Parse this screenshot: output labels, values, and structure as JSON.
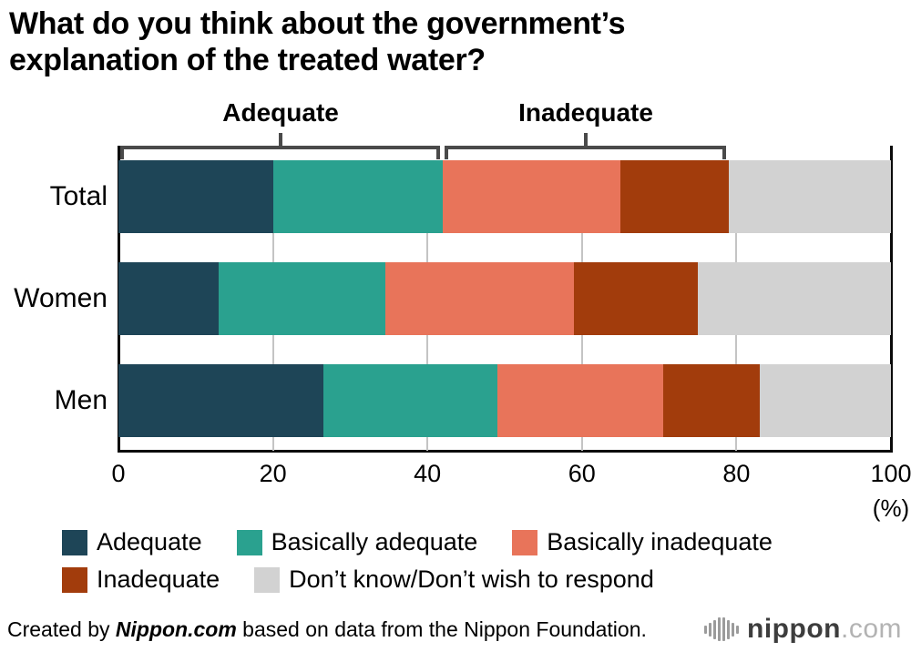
{
  "chart_data": {
    "type": "bar",
    "orientation": "horizontal",
    "stacked": true,
    "title": "What do you think about the government’s explanation of the treated water?",
    "categories": [
      "Total",
      "Women",
      "Men"
    ],
    "series": [
      {
        "name": "Adequate",
        "color": "#1e4557",
        "values": [
          20,
          13,
          26.5
        ]
      },
      {
        "name": "Basically adequate",
        "color": "#2aa18f",
        "values": [
          22,
          21.5,
          22.5
        ]
      },
      {
        "name": "Basically inadequate",
        "color": "#e8745a",
        "values": [
          23,
          24.5,
          21.5
        ]
      },
      {
        "name": "Inadequate",
        "color": "#a23c0c",
        "values": [
          14,
          16,
          12.5
        ]
      },
      {
        "name": "Don’t know/Don’t wish to respond",
        "color": "#d2d2d2",
        "values": [
          21,
          25,
          17
        ]
      }
    ],
    "xlim": [
      0,
      100
    ],
    "x_ticks": [
      0,
      20,
      40,
      60,
      80,
      100
    ],
    "x_unit_label": "(%)",
    "grid": true,
    "legend_position": "bottom",
    "annotations": [
      {
        "label": "Adequate",
        "from": 0,
        "to": 42
      },
      {
        "label": "Inadequate",
        "from": 42,
        "to": 79
      }
    ]
  },
  "footer": {
    "credit_prefix": "Created by ",
    "credit_source": "Nippon.com",
    "credit_suffix": " based on data from the Nippon Foundation.",
    "logo_name": "nippon",
    "logo_tld": ".com"
  }
}
